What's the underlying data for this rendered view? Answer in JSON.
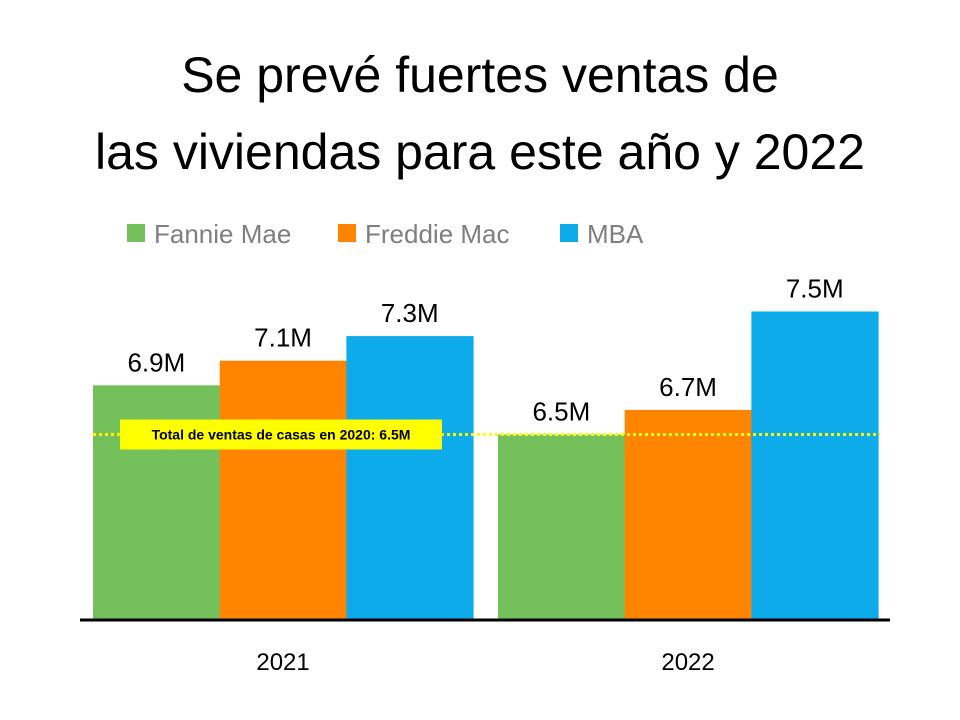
{
  "chart_data": {
    "type": "bar",
    "title_lines": [
      "Se prevé fuertes ventas de",
      "las viviendas para este año y 2022"
    ],
    "categories": [
      "2021",
      "2022"
    ],
    "series": [
      {
        "name": "Fannie Mae",
        "color": "#74c15c",
        "values": [
          6.9,
          6.5
        ],
        "labels": [
          "6.9M",
          "6.5M"
        ]
      },
      {
        "name": "Freddie Mac",
        "color": "#ff8500",
        "values": [
          7.1,
          6.7
        ],
        "labels": [
          "7.1M",
          "6.7M"
        ]
      },
      {
        "name": "MBA",
        "color": "#0eabea",
        "values": [
          7.3,
          7.5
        ],
        "labels": [
          "7.3M",
          "7.5M"
        ]
      }
    ],
    "ylim": [
      5.0,
      8.0
    ],
    "xlabel": "",
    "ylabel": "",
    "grid": false,
    "legend_position": "top",
    "reference_line": {
      "value": 6.5,
      "color": "#ffff00",
      "label": "Total de ventas de casas en 2020: 6.5M"
    }
  }
}
